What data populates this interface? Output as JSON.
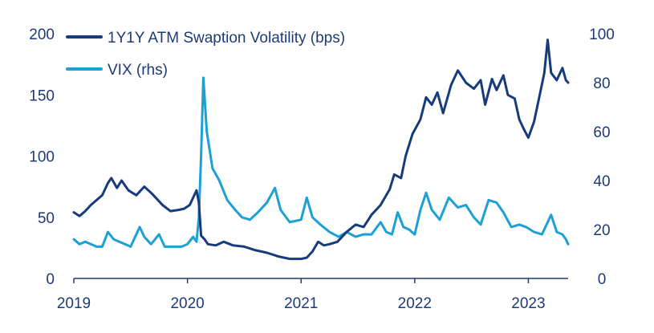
{
  "chart_data": {
    "type": "line",
    "title": "",
    "xlabel": "",
    "ylabel": "",
    "y2label": "",
    "x_range": [
      2019.0,
      2023.35
    ],
    "ylim": [
      0,
      200
    ],
    "y2lim": [
      0,
      100
    ],
    "x_ticks": [
      2019,
      2020,
      2021,
      2022,
      2023
    ],
    "x_tick_labels": [
      "2019",
      "2020",
      "2021",
      "2022",
      "2023"
    ],
    "y_ticks": [
      0,
      50,
      100,
      150,
      200
    ],
    "y_tick_labels": [
      "0",
      "50",
      "100",
      "150",
      "200"
    ],
    "y2_ticks": [
      0,
      20,
      40,
      60,
      80,
      100
    ],
    "y2_tick_labels": [
      "0",
      "20",
      "40",
      "60",
      "80",
      "100"
    ],
    "legend_position": "top-left",
    "series": [
      {
        "name": "1Y1Y ATM Swaption Volatility (bps)",
        "axis": "left",
        "color": "#173b7d",
        "points": [
          [
            2019.0,
            54
          ],
          [
            2019.05,
            51
          ],
          [
            2019.1,
            55
          ],
          [
            2019.15,
            60
          ],
          [
            2019.2,
            64
          ],
          [
            2019.25,
            68
          ],
          [
            2019.3,
            78
          ],
          [
            2019.33,
            82
          ],
          [
            2019.38,
            74
          ],
          [
            2019.42,
            80
          ],
          [
            2019.48,
            72
          ],
          [
            2019.55,
            68
          ],
          [
            2019.62,
            75
          ],
          [
            2019.68,
            70
          ],
          [
            2019.72,
            66
          ],
          [
            2019.78,
            60
          ],
          [
            2019.85,
            55
          ],
          [
            2019.92,
            56
          ],
          [
            2019.97,
            57
          ],
          [
            2020.02,
            60
          ],
          [
            2020.05,
            66
          ],
          [
            2020.08,
            72
          ],
          [
            2020.1,
            62
          ],
          [
            2020.12,
            35
          ],
          [
            2020.15,
            32
          ],
          [
            2020.18,
            28
          ],
          [
            2020.25,
            27
          ],
          [
            2020.32,
            30
          ],
          [
            2020.4,
            27
          ],
          [
            2020.5,
            26
          ],
          [
            2020.6,
            23
          ],
          [
            2020.7,
            21
          ],
          [
            2020.8,
            18
          ],
          [
            2020.9,
            16
          ],
          [
            2021.0,
            16
          ],
          [
            2021.05,
            17
          ],
          [
            2021.1,
            22
          ],
          [
            2021.15,
            30
          ],
          [
            2021.2,
            27
          ],
          [
            2021.25,
            28
          ],
          [
            2021.32,
            30
          ],
          [
            2021.4,
            38
          ],
          [
            2021.48,
            44
          ],
          [
            2021.55,
            42
          ],
          [
            2021.62,
            52
          ],
          [
            2021.7,
            60
          ],
          [
            2021.78,
            73
          ],
          [
            2021.82,
            85
          ],
          [
            2021.88,
            82
          ],
          [
            2021.92,
            100
          ],
          [
            2021.98,
            118
          ],
          [
            2022.05,
            130
          ],
          [
            2022.1,
            148
          ],
          [
            2022.15,
            142
          ],
          [
            2022.2,
            152
          ],
          [
            2022.25,
            135
          ],
          [
            2022.32,
            158
          ],
          [
            2022.38,
            170
          ],
          [
            2022.45,
            160
          ],
          [
            2022.52,
            155
          ],
          [
            2022.58,
            162
          ],
          [
            2022.62,
            142
          ],
          [
            2022.68,
            163
          ],
          [
            2022.72,
            154
          ],
          [
            2022.78,
            166
          ],
          [
            2022.82,
            150
          ],
          [
            2022.88,
            147
          ],
          [
            2022.92,
            130
          ],
          [
            2022.96,
            122
          ],
          [
            2023.0,
            115
          ],
          [
            2023.05,
            128
          ],
          [
            2023.1,
            150
          ],
          [
            2023.14,
            168
          ],
          [
            2023.17,
            195
          ],
          [
            2023.2,
            168
          ],
          [
            2023.25,
            162
          ],
          [
            2023.3,
            172
          ],
          [
            2023.33,
            162
          ],
          [
            2023.35,
            160
          ]
        ]
      },
      {
        "name": "VIX (rhs)",
        "axis": "right",
        "color": "#1da0d3",
        "points": [
          [
            2019.0,
            16
          ],
          [
            2019.05,
            14
          ],
          [
            2019.1,
            15
          ],
          [
            2019.15,
            14
          ],
          [
            2019.2,
            13
          ],
          [
            2019.25,
            13
          ],
          [
            2019.3,
            19
          ],
          [
            2019.35,
            16
          ],
          [
            2019.4,
            15
          ],
          [
            2019.45,
            14
          ],
          [
            2019.5,
            13
          ],
          [
            2019.58,
            21
          ],
          [
            2019.62,
            17
          ],
          [
            2019.68,
            14
          ],
          [
            2019.75,
            18
          ],
          [
            2019.8,
            13
          ],
          [
            2019.88,
            13
          ],
          [
            2019.95,
            13
          ],
          [
            2020.0,
            14
          ],
          [
            2020.05,
            17
          ],
          [
            2020.08,
            15
          ],
          [
            2020.1,
            25
          ],
          [
            2020.12,
            50
          ],
          [
            2020.14,
            82
          ],
          [
            2020.17,
            60
          ],
          [
            2020.22,
            45
          ],
          [
            2020.28,
            40
          ],
          [
            2020.35,
            32
          ],
          [
            2020.42,
            28
          ],
          [
            2020.48,
            25
          ],
          [
            2020.55,
            24
          ],
          [
            2020.62,
            27
          ],
          [
            2020.7,
            31
          ],
          [
            2020.77,
            37
          ],
          [
            2020.82,
            28
          ],
          [
            2020.9,
            23
          ],
          [
            2021.0,
            24
          ],
          [
            2021.05,
            33
          ],
          [
            2021.1,
            25
          ],
          [
            2021.17,
            22
          ],
          [
            2021.25,
            19
          ],
          [
            2021.33,
            17
          ],
          [
            2021.4,
            19
          ],
          [
            2021.48,
            17
          ],
          [
            2021.55,
            18
          ],
          [
            2021.62,
            18
          ],
          [
            2021.7,
            23
          ],
          [
            2021.75,
            19
          ],
          [
            2021.8,
            18
          ],
          [
            2021.85,
            27
          ],
          [
            2021.9,
            21
          ],
          [
            2021.95,
            20
          ],
          [
            2022.0,
            18
          ],
          [
            2022.05,
            28
          ],
          [
            2022.1,
            35
          ],
          [
            2022.15,
            28
          ],
          [
            2022.22,
            24
          ],
          [
            2022.3,
            33
          ],
          [
            2022.38,
            29
          ],
          [
            2022.45,
            30
          ],
          [
            2022.52,
            25
          ],
          [
            2022.58,
            22
          ],
          [
            2022.65,
            32
          ],
          [
            2022.72,
            31
          ],
          [
            2022.78,
            27
          ],
          [
            2022.85,
            21
          ],
          [
            2022.92,
            22
          ],
          [
            2022.98,
            21
          ],
          [
            2023.05,
            19
          ],
          [
            2023.12,
            18
          ],
          [
            2023.2,
            26
          ],
          [
            2023.25,
            19
          ],
          [
            2023.3,
            18
          ],
          [
            2023.33,
            16
          ],
          [
            2023.35,
            14
          ]
        ]
      }
    ]
  }
}
